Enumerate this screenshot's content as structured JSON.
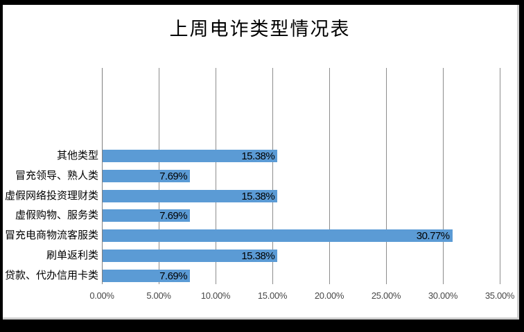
{
  "frame": {
    "background": "#000000",
    "canvas_background": "#ffffff",
    "canvas_edge_color": "#cfcfcf"
  },
  "chart_data": {
    "type": "bar",
    "orientation": "horizontal",
    "title": "上周电诈类型情况表",
    "categories": [
      "其他类型",
      "冒充领导、熟人类",
      "虚假网络投资理财类",
      "虚假购物、服务类",
      "冒充电商物流客服类",
      "刷单返利类",
      "贷款、代办信用卡类"
    ],
    "values": [
      15.38,
      7.69,
      15.38,
      7.69,
      30.77,
      15.38,
      7.69
    ],
    "value_labels": [
      "15.38%",
      "7.69%",
      "15.38%",
      "7.69%",
      "30.77%",
      "15.38%",
      "7.69%"
    ],
    "x_ticks": [
      "0.00%",
      "5.00%",
      "10.00%",
      "15.00%",
      "20.00%",
      "25.00%",
      "30.00%",
      "35.00%"
    ],
    "xlim": [
      0,
      35
    ],
    "xlabel": "",
    "ylabel": "",
    "legend": "none",
    "grid": "vertical-only",
    "bar_color": "#5B9BD5",
    "gridline_color": "#8c8c8c",
    "axis_color": "#7f7f7f",
    "tick_label_color": "#474747",
    "data_label_position": "inside-end"
  }
}
